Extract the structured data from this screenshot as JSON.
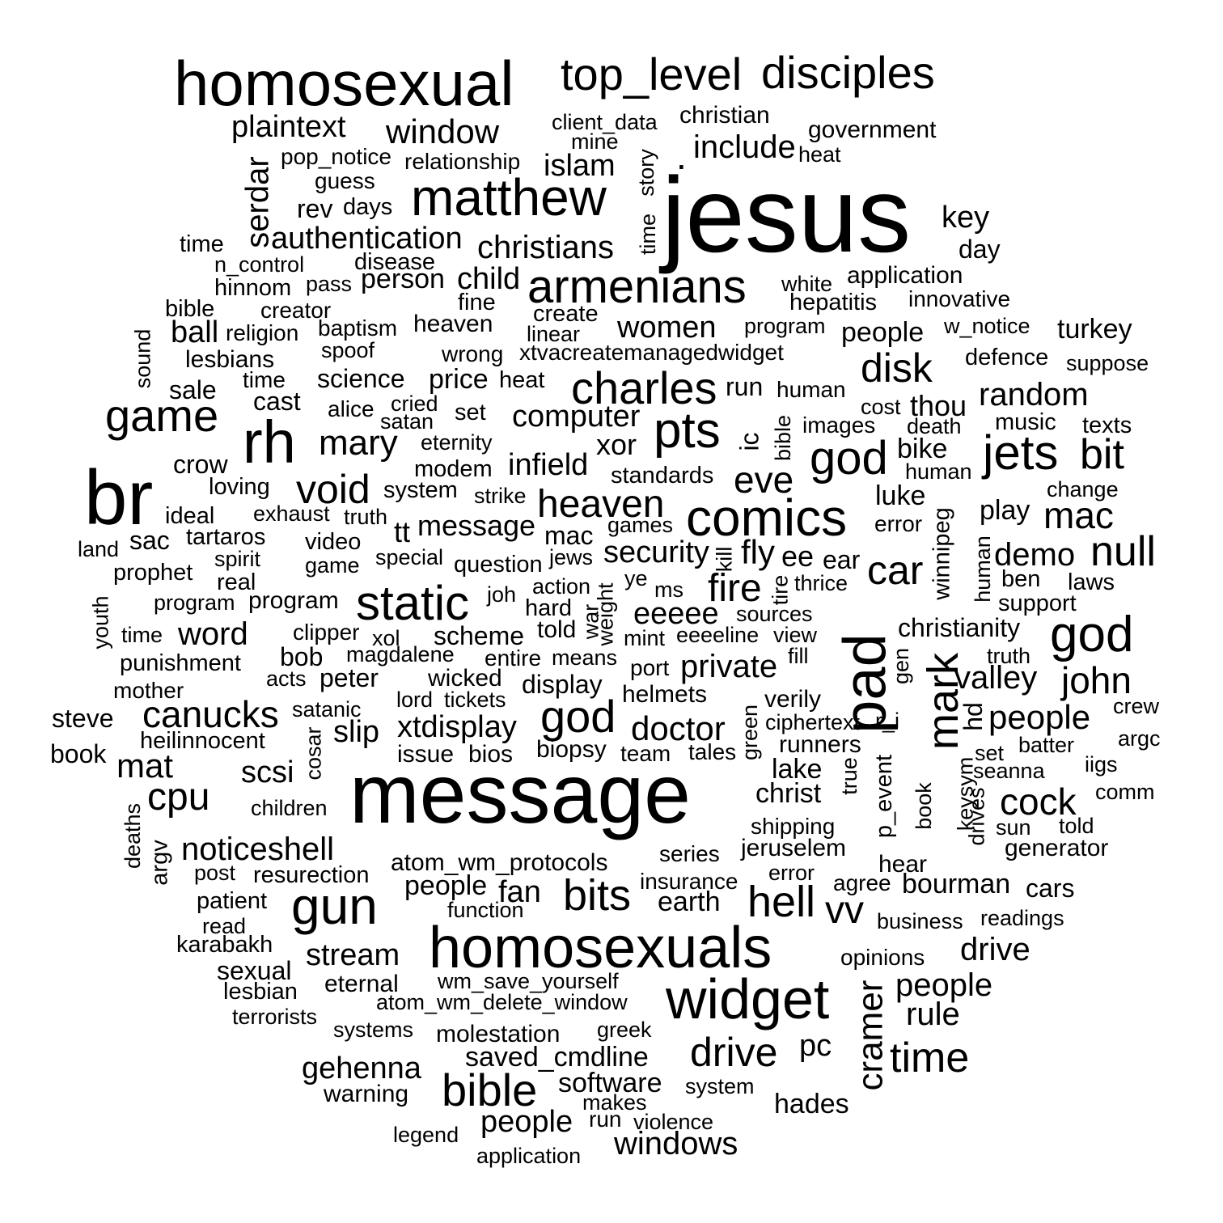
{
  "words": [
    {
      "text": "jesus",
      "weight": 100
    },
    {
      "text": "message",
      "weight": 95
    },
    {
      "text": "br",
      "weight": 86
    },
    {
      "text": "homosexual",
      "weight": 73
    },
    {
      "text": "homosexuals",
      "weight": 69
    },
    {
      "text": "widget",
      "weight": 68
    },
    {
      "text": "rh",
      "weight": 70
    },
    {
      "text": "pad",
      "weight": 70
    },
    {
      "text": "matthew",
      "weight": 62
    },
    {
      "text": "comics",
      "weight": 62
    },
    {
      "text": "gun",
      "weight": 61
    },
    {
      "text": "static",
      "weight": 58
    },
    {
      "text": "top_level",
      "weight": 55
    },
    {
      "text": "disciples",
      "weight": 54
    },
    {
      "text": "armenians",
      "weight": 56
    },
    {
      "text": "god",
      "weight": 58
    },
    {
      "text": "god",
      "weight": 54
    },
    {
      "text": "god",
      "weight": 52
    },
    {
      "text": "pts",
      "weight": 58
    },
    {
      "text": "jets",
      "weight": 56
    },
    {
      "text": "game",
      "weight": 53
    },
    {
      "text": "charles",
      "weight": 52
    },
    {
      "text": "bible",
      "weight": 52
    },
    {
      "text": "mark",
      "weight": 52
    },
    {
      "text": "hell",
      "weight": 50
    },
    {
      "text": "bits",
      "weight": 49
    },
    {
      "text": "time",
      "weight": 48
    },
    {
      "text": "drive",
      "weight": 47
    },
    {
      "text": "null",
      "weight": 48
    },
    {
      "text": "void",
      "weight": 47
    },
    {
      "text": "heaven",
      "weight": 46
    },
    {
      "text": "disk",
      "weight": 46
    },
    {
      "text": "car",
      "weight": 46
    },
    {
      "text": "bit",
      "weight": 48
    },
    {
      "text": "cpu",
      "weight": 45
    },
    {
      "text": "cock",
      "weight": 44
    },
    {
      "text": "fire",
      "weight": 45
    },
    {
      "text": "vv",
      "weight": 44
    },
    {
      "text": "cramer",
      "weight": 45
    },
    {
      "text": "mary",
      "weight": 42
    },
    {
      "text": "eve",
      "weight": 42
    },
    {
      "text": "john",
      "weight": 42
    },
    {
      "text": "mac",
      "weight": 41
    },
    {
      "text": "canucks",
      "weight": 42
    },
    {
      "text": "window",
      "weight": 40
    },
    {
      "text": "doctor",
      "weight": 40
    },
    {
      "text": "fly",
      "weight": 40
    },
    {
      "text": "noticeshell",
      "weight": 38
    },
    {
      "text": "mat",
      "weight": 40
    },
    {
      "text": "serdar",
      "weight": 38
    },
    {
      "text": "people",
      "weight": 38
    },
    {
      "text": "people",
      "weight": 36
    },
    {
      "text": "people",
      "weight": 36
    },
    {
      "text": "private",
      "weight": 37
    },
    {
      "text": "valley",
      "weight": 37
    },
    {
      "text": "eeeee",
      "weight": 36
    },
    {
      "text": "security",
      "weight": 36
    },
    {
      "text": "windows",
      "weight": 38
    },
    {
      "text": "plaintext",
      "weight": 36
    },
    {
      "text": "computer",
      "weight": 35
    },
    {
      "text": "xtdisplay",
      "weight": 35
    },
    {
      "text": "christians",
      "weight": 37
    },
    {
      "text": "authentication",
      "weight": 35
    },
    {
      "text": "include",
      "weight": 36
    },
    {
      "text": "rule",
      "weight": 36
    },
    {
      "text": "random",
      "weight": 36
    },
    {
      "text": "demo",
      "weight": 36
    },
    {
      "text": "word",
      "weight": 36
    },
    {
      "text": "women",
      "weight": 35
    },
    {
      "text": "fan",
      "weight": 35
    },
    {
      "text": "infield",
      "weight": 35
    },
    {
      "text": "key",
      "weight": 36
    },
    {
      "text": "islam",
      "weight": 35
    },
    {
      "text": "game",
      "weight": 47
    },
    {
      "text": "xor",
      "weight": 34
    },
    {
      "text": "thou",
      "weight": 34
    },
    {
      "text": "slip",
      "weight": 35
    },
    {
      "text": "ball",
      "weight": 35
    },
    {
      "text": "gehenna",
      "weight": 35
    },
    {
      "text": "drive",
      "weight": 37
    },
    {
      "text": "stream",
      "weight": 35
    },
    {
      "text": "scsi",
      "weight": 35
    },
    {
      "text": "child",
      "weight": 35
    },
    {
      "text": "pc",
      "weight": 35
    },
    {
      "text": "message",
      "weight": 33
    },
    {
      "text": "ee",
      "weight": 34
    },
    {
      "text": "ear",
      "weight": 31
    },
    {
      "text": "christianity",
      "weight": 31
    },
    {
      "text": "bike",
      "weight": 31
    },
    {
      "text": "turkey",
      "weight": 31
    },
    {
      "text": "sale",
      "weight": 30
    },
    {
      "text": "crow",
      "weight": 30
    },
    {
      "text": "tt",
      "weight": 33
    },
    {
      "text": "software",
      "weight": 32
    },
    {
      "text": "saved_cmdline",
      "weight": 31
    },
    {
      "text": "bourman",
      "weight": 32
    },
    {
      "text": "earth",
      "weight": 31
    },
    {
      "text": "lake",
      "weight": 32
    },
    {
      "text": "christ",
      "weight": 31
    },
    {
      "text": "hades",
      "weight": 31
    },
    {
      "text": "play",
      "weight": 31
    },
    {
      "text": "luke",
      "weight": 31
    },
    {
      "text": "person",
      "weight": 31
    },
    {
      "text": "price",
      "weight": 30
    },
    {
      "text": "science",
      "weight": 30
    },
    {
      "text": "cast",
      "weight": 30
    },
    {
      "text": "peter",
      "weight": 30
    },
    {
      "text": "bob",
      "weight": 30
    },
    {
      "text": "sac",
      "weight": 30
    },
    {
      "text": "rev",
      "weight": 30
    },
    {
      "text": "day",
      "weight": 30
    },
    {
      "text": "people",
      "weight": 34
    },
    {
      "text": "people",
      "weight": 31
    },
    {
      "text": "jeruselem",
      "weight": 29
    },
    {
      "text": "runners",
      "weight": 29
    },
    {
      "text": "helmets",
      "weight": 29
    },
    {
      "text": "verily",
      "weight": 29
    },
    {
      "text": "sexual",
      "weight": 29
    },
    {
      "text": "display",
      "weight": 29
    },
    {
      "text": "scheme",
      "weight": 29
    },
    {
      "text": "heaven",
      "weight": 28
    },
    {
      "text": "application",
      "weight": 28
    },
    {
      "text": "time",
      "weight": 28
    },
    {
      "text": "canucks",
      "weight": 0
    },
    {
      "text": "bios",
      "weight": 29
    },
    {
      "text": "issue",
      "weight": 29
    },
    {
      "text": "lesbians",
      "weight": 28
    },
    {
      "text": "biopsy",
      "weight": 28
    },
    {
      "text": "cars",
      "weight": 29
    },
    {
      "text": "hear",
      "weight": 28
    },
    {
      "text": "mac",
      "weight": 29
    },
    {
      "text": "government",
      "weight": 28
    },
    {
      "text": "christian",
      "weight": 28
    },
    {
      "text": "wicked",
      "weight": 28
    },
    {
      "text": "told",
      "weight": 28
    },
    {
      "text": "eternal",
      "weight": 28
    },
    {
      "text": "molestation",
      "weight": 28
    },
    {
      "text": "generator",
      "weight": 28
    },
    {
      "text": "program",
      "weight": 28
    },
    {
      "text": "atom_wm_protocols",
      "weight": 28
    },
    {
      "text": "resurection",
      "weight": 27
    },
    {
      "text": "patient",
      "weight": 27
    },
    {
      "text": "karabakh",
      "weight": 27
    },
    {
      "text": "lesbian",
      "weight": 27
    },
    {
      "text": "steve",
      "weight": 27
    },
    {
      "text": "book",
      "weight": 27
    },
    {
      "text": "hinnom",
      "weight": 27
    },
    {
      "text": "heilinnocent",
      "weight": 27
    },
    {
      "text": "punishment",
      "weight": 27
    },
    {
      "text": "disease",
      "weight": 27
    },
    {
      "text": "prophet",
      "weight": 27
    },
    {
      "text": "ideal",
      "weight": 27
    },
    {
      "text": "hepatitis",
      "weight": 27
    },
    {
      "text": "defence",
      "weight": 27
    },
    {
      "text": "music",
      "weight": 27
    },
    {
      "text": "texts",
      "weight": 27
    },
    {
      "text": "support",
      "weight": 27
    },
    {
      "text": "laws",
      "weight": 27
    },
    {
      "text": "ben",
      "weight": 27
    },
    {
      "text": "modem",
      "weight": 27
    },
    {
      "text": "video",
      "weight": 27
    },
    {
      "text": "days",
      "weight": 27
    },
    {
      "text": "time",
      "weight": 27
    },
    {
      "text": "bible",
      "weight": 27
    },
    {
      "text": "heat",
      "weight": 27
    },
    {
      "text": "fine",
      "weight": 27
    },
    {
      "text": "create",
      "weight": 27
    },
    {
      "text": "loving",
      "weight": 27
    },
    {
      "text": "alice",
      "weight": 26
    },
    {
      "text": "set",
      "weight": 26
    },
    {
      "text": "standards",
      "weight": 27
    },
    {
      "text": "real",
      "weight": 27
    },
    {
      "text": "tartaros",
      "weight": 27
    },
    {
      "text": "system",
      "weight": 27
    },
    {
      "text": "question",
      "weight": 27
    },
    {
      "text": "hard",
      "weight": 27
    },
    {
      "text": "mother",
      "weight": 26
    },
    {
      "text": "clipper",
      "weight": 26
    },
    {
      "text": "entire",
      "weight": 26
    },
    {
      "text": "port",
      "weight": 26
    },
    {
      "text": "team",
      "weight": 26
    },
    {
      "text": "tales",
      "weight": 26
    },
    {
      "text": "opinions",
      "weight": 26
    },
    {
      "text": "agree",
      "weight": 26
    },
    {
      "text": "insurance",
      "weight": 26
    },
    {
      "text": "series",
      "weight": 26
    },
    {
      "text": "shipping",
      "weight": 26
    },
    {
      "text": "people",
      "weight": 25
    },
    {
      "text": "innovative",
      "weight": 26
    },
    {
      "text": "creator",
      "weight": 26
    },
    {
      "text": "religion",
      "weight": 26
    },
    {
      "text": "baptism",
      "weight": 26
    },
    {
      "text": "relationship",
      "weight": 26
    },
    {
      "text": "pop_notice",
      "weight": 26
    },
    {
      "text": "guess",
      "weight": 26
    },
    {
      "text": "wrong",
      "weight": 26
    },
    {
      "text": "xtvacreatemanagedwidget",
      "weight": 26
    },
    {
      "text": "white",
      "weight": 25
    },
    {
      "text": "program",
      "weight": 25
    },
    {
      "text": "w_notice",
      "weight": 25
    },
    {
      "text": "cost",
      "weight": 25
    },
    {
      "text": "death",
      "weight": 25
    },
    {
      "text": "human",
      "weight": 26
    },
    {
      "text": "images",
      "weight": 26
    },
    {
      "text": "run",
      "weight": 30
    },
    {
      "text": "heat",
      "weight": 25
    },
    {
      "text": "spoof",
      "weight": 25
    },
    {
      "text": "eternity",
      "weight": 25
    },
    {
      "text": "satan",
      "weight": 25
    },
    {
      "text": "cried",
      "weight": 25
    },
    {
      "text": "strike",
      "weight": 25
    },
    {
      "text": "exhaust",
      "weight": 25
    },
    {
      "text": "truth",
      "weight": 25
    },
    {
      "text": "special",
      "weight": 25
    },
    {
      "text": "games",
      "weight": 25
    },
    {
      "text": "jews",
      "weight": 25
    },
    {
      "text": "action",
      "weight": 25
    },
    {
      "text": "joh",
      "weight": 25
    },
    {
      "text": "ms",
      "weight": 25
    },
    {
      "text": "ye",
      "weight": 25
    },
    {
      "text": "thrice",
      "weight": 25
    },
    {
      "text": "sources",
      "weight": 25
    },
    {
      "text": "mint",
      "weight": 25
    },
    {
      "text": "eeeeline",
      "weight": 25
    },
    {
      "text": "view",
      "weight": 25
    },
    {
      "text": "fill",
      "weight": 25
    },
    {
      "text": "means",
      "weight": 25
    },
    {
      "text": "magdalene",
      "weight": 25
    },
    {
      "text": "xol",
      "weight": 25
    },
    {
      "text": "acts",
      "weight": 25
    },
    {
      "text": "lord",
      "weight": 25
    },
    {
      "text": "tickets",
      "weight": 25
    },
    {
      "text": "satanic",
      "weight": 25
    },
    {
      "text": "children",
      "weight": 25
    },
    {
      "text": "post",
      "weight": 25
    },
    {
      "text": "read",
      "weight": 25
    },
    {
      "text": "terrorists",
      "weight": 25
    },
    {
      "text": "systems",
      "weight": 25
    },
    {
      "text": "greek",
      "weight": 25
    },
    {
      "text": "wm_save_yourself",
      "weight": 25
    },
    {
      "text": "atom_wm_delete_window",
      "weight": 25
    },
    {
      "text": "function",
      "weight": 25
    },
    {
      "text": "warning",
      "weight": 28
    },
    {
      "text": "makes",
      "weight": 25
    },
    {
      "text": "run",
      "weight": 26
    },
    {
      "text": "violence",
      "weight": 25
    },
    {
      "text": "system",
      "weight": 25
    },
    {
      "text": "legend",
      "weight": 25
    },
    {
      "text": "application",
      "weight": 25
    },
    {
      "text": "people",
      "weight": 31
    },
    {
      "text": "business",
      "weight": 25
    },
    {
      "text": "readings",
      "weight": 25
    },
    {
      "text": "error",
      "weight": 25
    },
    {
      "text": "error",
      "weight": 26
    },
    {
      "text": "ciphertext",
      "weight": 25
    },
    {
      "text": "set",
      "weight": 25
    },
    {
      "text": "seanna",
      "weight": 25
    },
    {
      "text": "iigs",
      "weight": 25
    },
    {
      "text": "comm",
      "weight": 25
    },
    {
      "text": "sun",
      "weight": 25
    },
    {
      "text": "told",
      "weight": 25
    },
    {
      "text": "crew",
      "weight": 25
    },
    {
      "text": "argc",
      "weight": 25
    },
    {
      "text": "batter",
      "weight": 25
    },
    {
      "text": "truth",
      "weight": 25
    },
    {
      "text": "change",
      "weight": 25
    },
    {
      "text": "human",
      "weight": 25
    },
    {
      "text": "suppose",
      "weight": 25
    },
    {
      "text": "client_data",
      "weight": 25
    },
    {
      "text": "mine",
      "weight": 25
    },
    {
      "text": "n_control",
      "weight": 25
    },
    {
      "text": "pass",
      "weight": 25
    },
    {
      "text": "land",
      "weight": 25
    },
    {
      "text": "spirit",
      "weight": 25
    },
    {
      "text": "game",
      "weight": 25
    },
    {
      "text": "program",
      "weight": 25
    },
    {
      "text": "time",
      "weight": 25
    },
    {
      "text": "linear",
      "weight": 25
    },
    {
      "text": "sound",
      "weight": 25
    },
    {
      "text": "story",
      "weight": 25
    },
    {
      "text": "time",
      "weight": 25
    },
    {
      "text": "ic",
      "weight": 25
    },
    {
      "text": "bible",
      "weight": 25
    },
    {
      "text": "kill",
      "weight": 25
    },
    {
      "text": "war",
      "weight": 25
    },
    {
      "text": "weight",
      "weight": 25
    },
    {
      "text": "tire",
      "weight": 25
    },
    {
      "text": "green",
      "weight": 25
    },
    {
      "text": "cosar",
      "weight": 25
    },
    {
      "text": "true",
      "weight": 25
    },
    {
      "text": "r_i",
      "weight": 25
    },
    {
      "text": "p_event",
      "weight": 25
    },
    {
      "text": "gen",
      "weight": 25
    },
    {
      "text": "hd",
      "weight": 25
    },
    {
      "text": "winnipeg",
      "weight": 25
    },
    {
      "text": "human",
      "weight": 25
    },
    {
      "text": "keysym",
      "weight": 25
    },
    {
      "text": "book",
      "weight": 25
    },
    {
      "text": "drives",
      "weight": 25
    },
    {
      "text": "youth",
      "weight": 25
    },
    {
      "text": "deaths",
      "weight": 25
    },
    {
      "text": "argv",
      "weight": 25
    }
  ]
}
